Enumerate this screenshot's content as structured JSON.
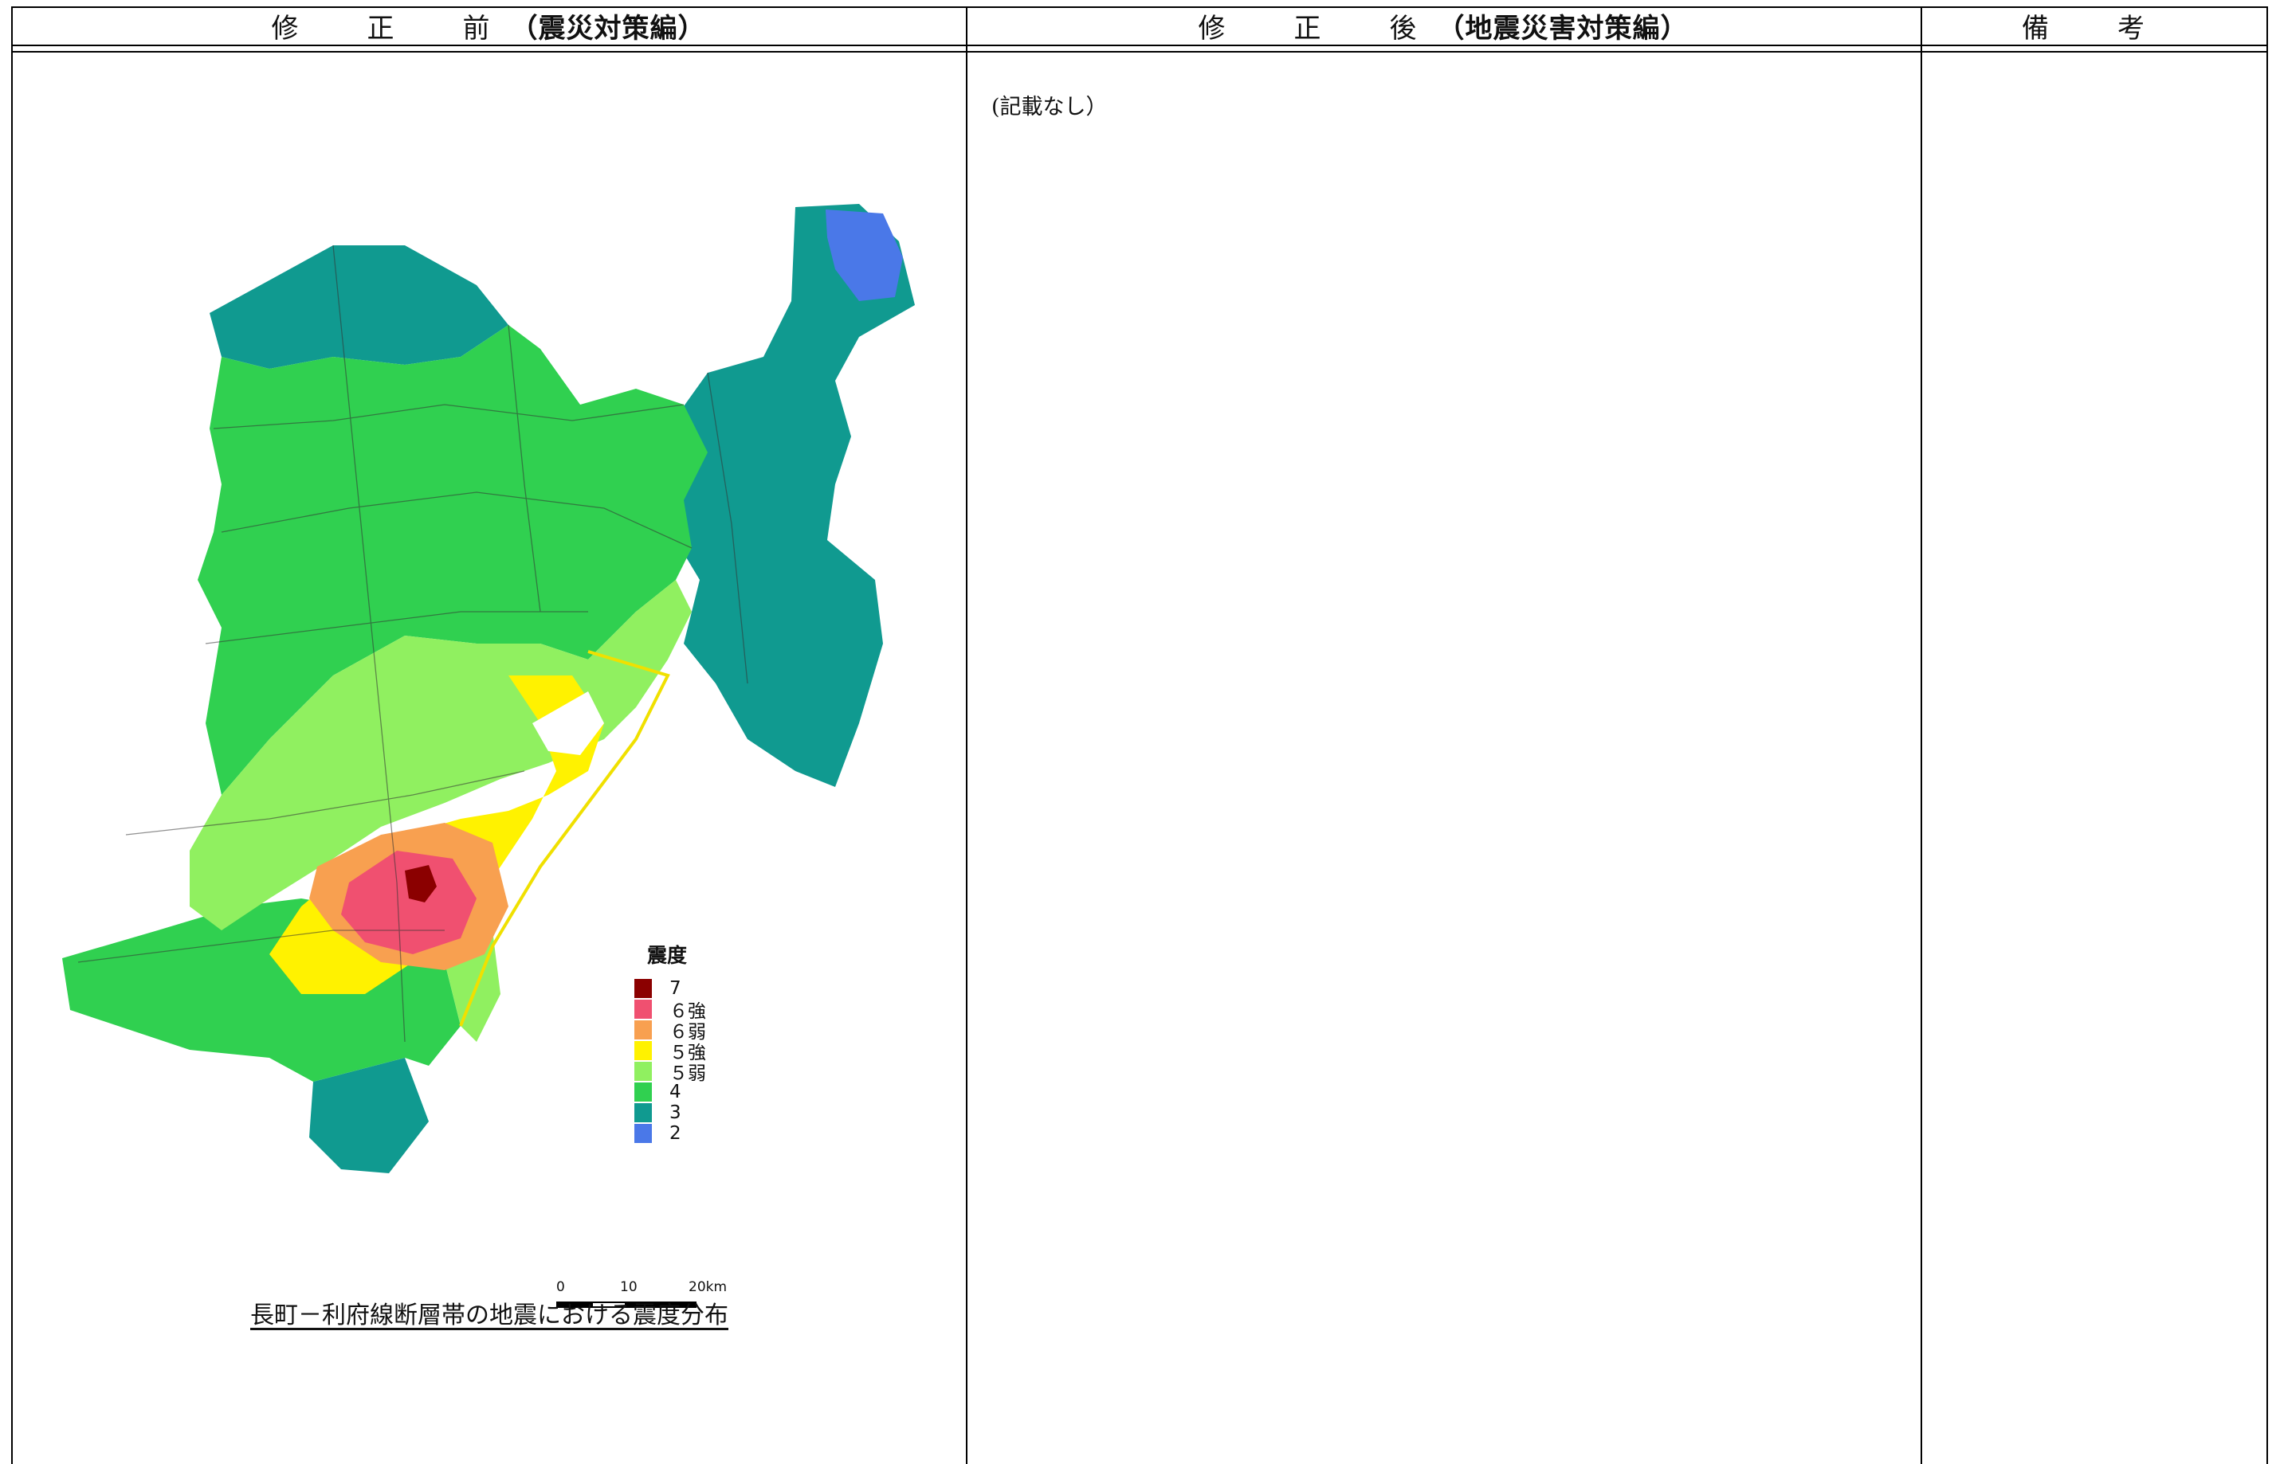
{
  "header": {
    "before_label": "修　正　前",
    "before_doc": "（震災対策編）",
    "after_label": "修　正　後",
    "after_doc": "（地震災害対策編）",
    "remarks_label": "備　考"
  },
  "after_column": {
    "note": "(記載なし）"
  },
  "map": {
    "caption": "長町－利府線断層帯の地震における震度分布",
    "legend_title": "震度",
    "legend": [
      {
        "label": "7",
        "color": "#8b0000"
      },
      {
        "label": "６強",
        "color": "#f05070"
      },
      {
        "label": "６弱",
        "color": "#f8a050"
      },
      {
        "label": "５強",
        "color": "#fff200"
      },
      {
        "label": "５弱",
        "color": "#90f060"
      },
      {
        "label": "4",
        "color": "#30d050"
      },
      {
        "label": "3",
        "color": "#109a90"
      },
      {
        "label": "2",
        "color": "#4a78e8"
      }
    ],
    "scale_labels": [
      "0",
      "10",
      "20km"
    ]
  }
}
